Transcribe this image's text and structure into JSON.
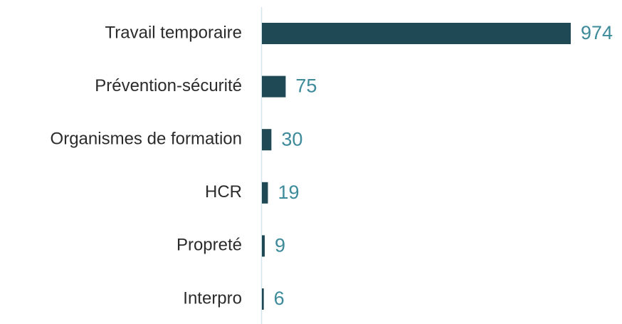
{
  "chart_data": {
    "type": "bar",
    "orientation": "horizontal",
    "categories": [
      "Travail temporaire",
      "Prévention-sécurité",
      "Organismes de formation",
      "HCR",
      "Propreté",
      "Interpro"
    ],
    "values": [
      974,
      75,
      30,
      19,
      9,
      6
    ],
    "color": "#1f4a55",
    "label_color": "#3d8a9a"
  }
}
